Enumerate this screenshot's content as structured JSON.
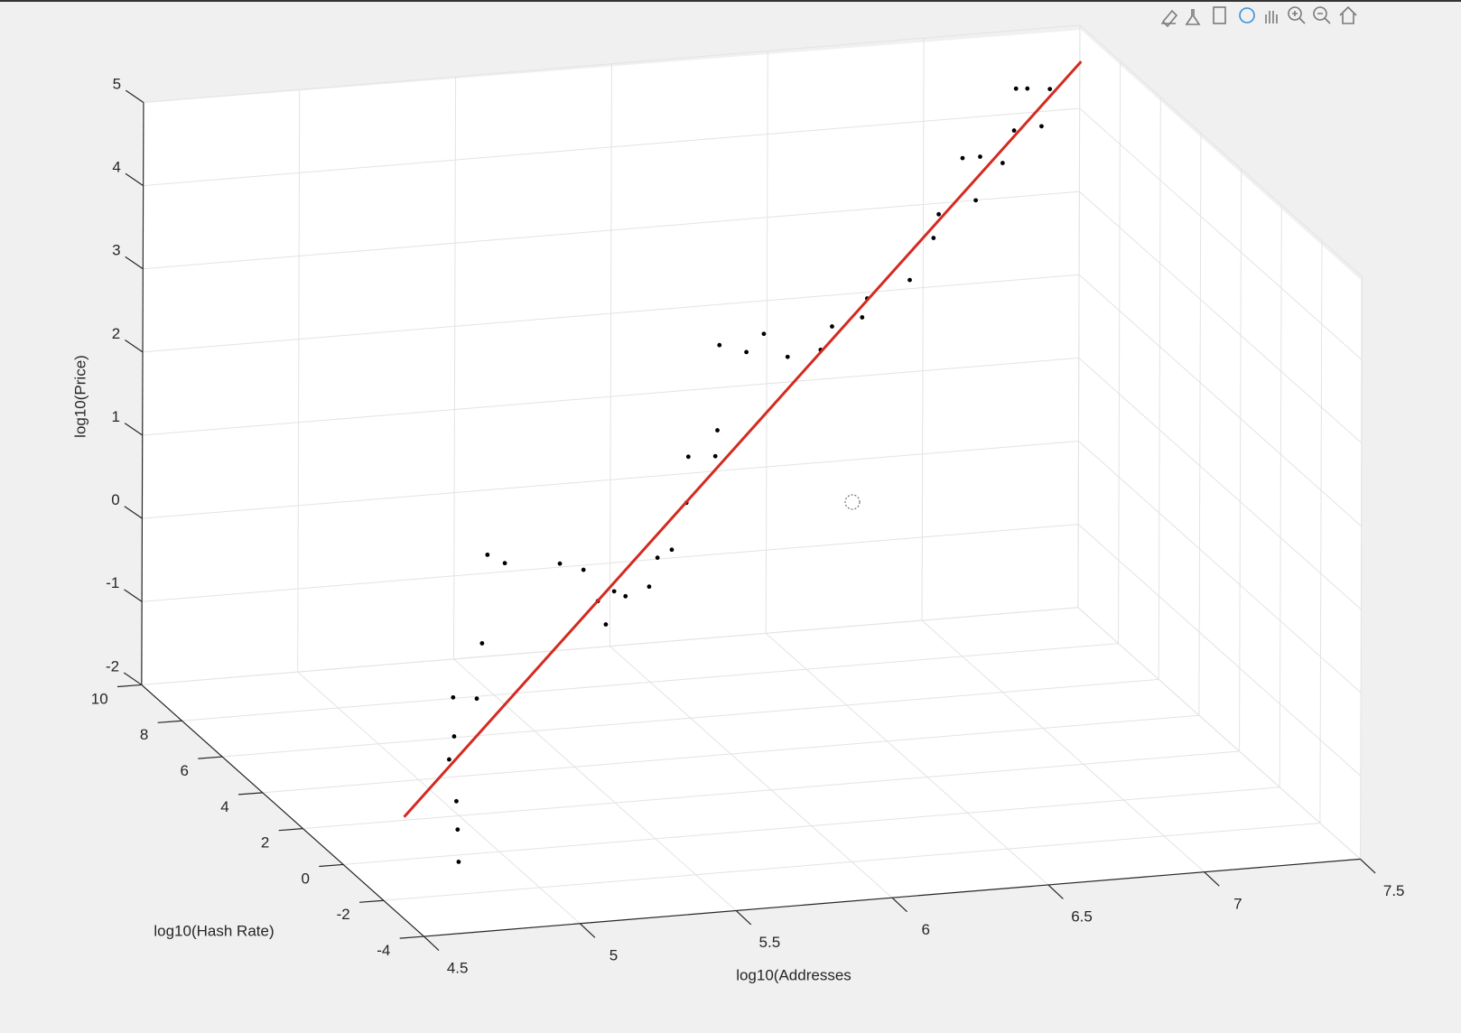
{
  "chart_data": {
    "type": "scatter3d",
    "xlabel": "log10(Addresses",
    "ylabel": "log10(Hash Rate)",
    "zlabel": "log10(Price)",
    "xlim": [
      4.5,
      7.5
    ],
    "ylim": [
      -4,
      10
    ],
    "zlim": [
      -2,
      5
    ],
    "xticks": [
      4.5,
      5,
      5.5,
      6,
      6.5,
      7,
      7.5
    ],
    "yticks": [
      -4,
      -2,
      0,
      2,
      4,
      6,
      8,
      10
    ],
    "zticks": [
      -2,
      -1,
      0,
      1,
      2,
      3,
      4,
      5
    ],
    "grid": true,
    "series": [
      {
        "mode": "markers",
        "color": "#000000",
        "x": [
          4.74,
          4.75,
          4.76,
          4.75,
          4.78,
          4.79,
          4.88,
          4.91,
          4.94,
          5.01,
          5.2,
          5.29,
          5.35,
          5.39,
          5.43,
          5.48,
          5.57,
          5.61,
          5.67,
          5.73,
          5.75,
          5.85,
          5.87,
          5.89,
          5.99,
          6.06,
          6.15,
          6.27,
          6.32,
          6.43,
          6.46,
          6.61,
          6.7,
          6.73,
          6.82,
          6.89,
          6.89,
          6.99,
          7.04,
          7.06,
          7.11,
          7.17,
          7.21
        ],
        "y": [
          -2,
          -1.79,
          -1.57,
          -1.36,
          -1.14,
          -0.93,
          -0.71,
          -0.5,
          -0.29,
          -0.07,
          0.14,
          0.36,
          0.57,
          0.79,
          1,
          1.21,
          1.43,
          1.64,
          1.86,
          2.07,
          2.29,
          2.5,
          2.71,
          2.93,
          3.14,
          3.36,
          3.57,
          3.79,
          4,
          4.21,
          4.43,
          4.64,
          4.86,
          5.07,
          5.29,
          5.5,
          5.71,
          5.93,
          6.14,
          6.36,
          6.57,
          6.79,
          7
        ],
        "z": [
          -1.61,
          -1.27,
          -0.98,
          -0.52,
          -0.3,
          0.12,
          0.03,
          0.64,
          1.65,
          1.48,
          1.37,
          1.22,
          0.78,
          0.44,
          0.78,
          0.66,
          0.7,
          0.99,
          1.02,
          1.52,
          2.02,
          1.95,
          2.21,
          3.18,
          3.02,
          3.17,
          2.82,
          2.82,
          3.04,
          3.07,
          3.24,
          3.37,
          3.8,
          4.03,
          4.63,
          4.58,
          4.01,
          4.38,
          4.71,
          5.16,
          5.1,
          4.58,
          4.97
        ]
      },
      {
        "mode": "line",
        "color": "#d42a20",
        "x": [
          4.5,
          7.31
        ],
        "y": [
          -3,
          7
        ],
        "z": [
          -0.78,
          5.27
        ]
      }
    ]
  }
}
